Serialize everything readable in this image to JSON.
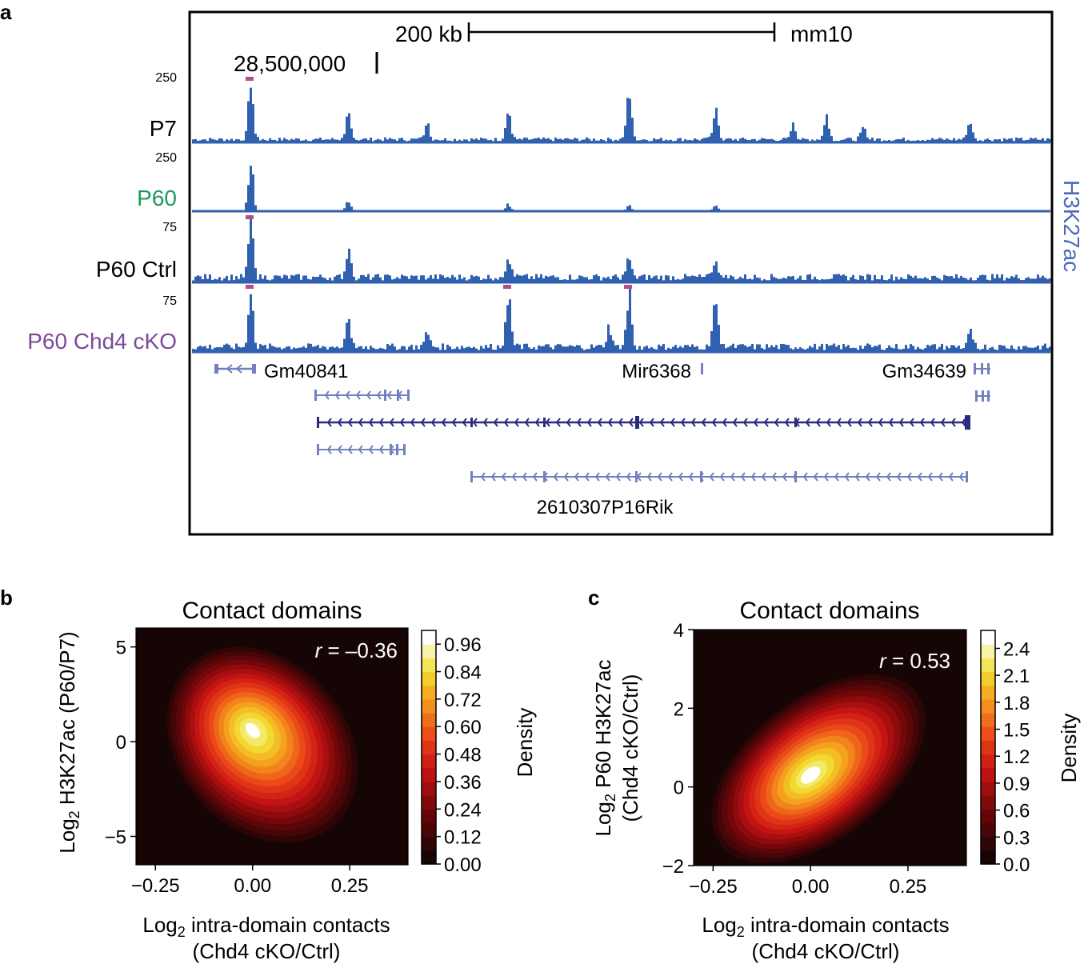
{
  "colors": {
    "track_blue": "#3060b0",
    "clip_magenta": "#b0508a",
    "gene_blue": "#7080c0",
    "gene_dark": "#2a2a80",
    "p60_green": "#1a9a5a",
    "cko_purple": "#7b4a9a",
    "h3k27ac_label": "#4a6ab8",
    "density_bg": "#160505"
  },
  "panel_a": {
    "letter": "a",
    "scale_label": "200 kb",
    "assembly": "mm10",
    "coordinate": "28,500,000",
    "side_label": "H3K27ac",
    "tracks": [
      {
        "name": "P7",
        "max": "250"
      },
      {
        "name": "P60",
        "max": "250"
      },
      {
        "name": "P60 Ctrl",
        "max": "75"
      },
      {
        "name": "P60 Chd4 cKO",
        "max": "75"
      }
    ],
    "genes": {
      "gm40841": "Gm40841",
      "mir6368": "Mir6368",
      "gm34639": "Gm34639",
      "rik": "2610307P16Rik"
    }
  },
  "chart_data": [
    {
      "type": "heatmap",
      "panel": "b",
      "title": "Contact domains",
      "xlabel_pre": "Log",
      "xlabel_sub": "2",
      "xlabel_rest": " intra-domain contacts",
      "xlabel_line2": "(Chd4 cKO/Ctrl)",
      "ylabel_pre": "Log",
      "ylabel_sub": "2",
      "ylabel_rest": " H3K27ac (P60/P7)",
      "ylabel_line2": "",
      "annotation_r": "r",
      "annotation_value": " = –0.36",
      "xlim": [
        -0.3,
        0.4
      ],
      "ylim": [
        -6.5,
        6
      ],
      "x_ticks": [
        -0.25,
        0.0,
        0.25
      ],
      "x_tick_labels": [
        "−0.25",
        "0.00",
        "0.25"
      ],
      "y_ticks": [
        5,
        0,
        -5
      ],
      "y_tick_labels": [
        "5",
        "0",
        "−5"
      ],
      "colorbar_label": "Density",
      "colorbar_range": [
        0,
        1.02
      ],
      "colorbar_ticks": [
        0.96,
        0.84,
        0.72,
        0.6,
        0.48,
        0.36,
        0.24,
        0.12,
        0.0
      ],
      "colorbar_tick_labels": [
        "0.96",
        "0.84",
        "0.72",
        "0.60",
        "0.48",
        "0.36",
        "0.24",
        "0.12",
        "0.00"
      ],
      "density_peak": {
        "x": 0.0,
        "y": 0.6,
        "value": 1.0
      },
      "correlation": -0.36
    },
    {
      "type": "heatmap",
      "panel": "c",
      "title": "Contact domains",
      "xlabel_pre": "Log",
      "xlabel_sub": "2",
      "xlabel_rest": " intra-domain contacts",
      "xlabel_line2": "(Chd4 cKO/Ctrl)",
      "ylabel_pre": "Log",
      "ylabel_sub": "2",
      "ylabel_rest": " P60 H3K27ac",
      "ylabel_line2": "(Chd4 cKO/Ctrl)",
      "annotation_r": "r",
      "annotation_value": " = 0.53",
      "xlim": [
        -0.3,
        0.4
      ],
      "ylim": [
        -2,
        4
      ],
      "x_ticks": [
        -0.25,
        0.0,
        0.25
      ],
      "x_tick_labels": [
        "−0.25",
        "0.00",
        "0.25"
      ],
      "y_ticks": [
        4,
        2,
        0,
        -2
      ],
      "y_tick_labels": [
        "4",
        "2",
        "0",
        "−2"
      ],
      "colorbar_label": "Density",
      "colorbar_range": [
        0,
        2.6
      ],
      "colorbar_ticks": [
        2.4,
        2.1,
        1.8,
        1.5,
        1.2,
        0.9,
        0.6,
        0.3,
        0.0
      ],
      "colorbar_tick_labels": [
        "2.4",
        "2.1",
        "1.8",
        "1.5",
        "1.2",
        "0.9",
        "0.6",
        "0.3",
        "0.0"
      ],
      "density_peak": {
        "x": 0.0,
        "y": 0.3,
        "value": 2.55
      },
      "correlation": 0.53
    }
  ]
}
